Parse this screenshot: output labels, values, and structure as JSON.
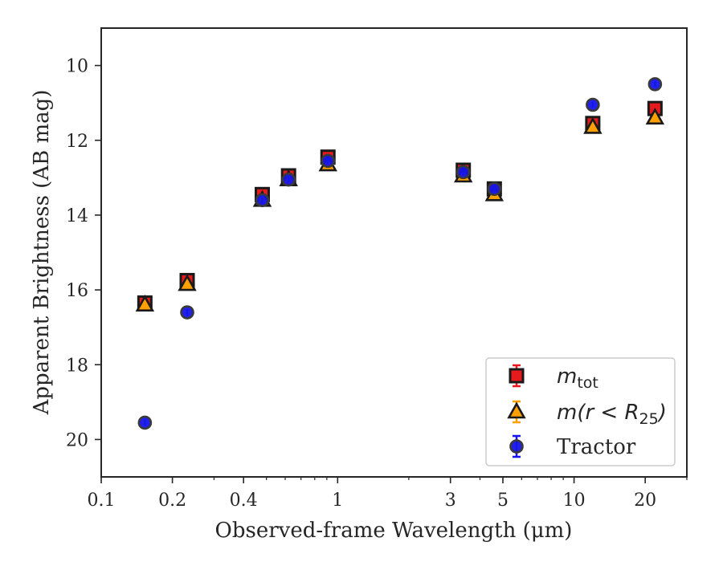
{
  "chart_data": {
    "type": "scatter",
    "xlabel": "Observed-frame Wavelength (μm)",
    "ylabel": "Apparent Brightness (AB mag)",
    "xscale": "log",
    "xlim": [
      0.1,
      30
    ],
    "ylim": [
      21,
      9
    ],
    "y_inverted": true,
    "x_ticks": [
      0.1,
      0.2,
      0.4,
      1,
      3,
      5,
      10,
      20
    ],
    "x_tick_labels": [
      "0.1",
      "0.2",
      "0.4",
      "1",
      "3",
      "5",
      "10",
      "20"
    ],
    "y_ticks": [
      10,
      12,
      14,
      16,
      18,
      20
    ],
    "y_tick_labels": [
      "10",
      "12",
      "14",
      "16",
      "18",
      "20"
    ],
    "grid": false,
    "legend_position": "lower-right",
    "series": [
      {
        "name": "m_tot",
        "legend_html": "m<tspan font-style='normal' font-size='19' dy='6'>tot</tspan>",
        "marker": "square",
        "color": "#e41a1c",
        "edge": "#1a1a1a",
        "x": [
          0.153,
          0.231,
          0.48,
          0.62,
          0.91,
          3.4,
          4.6,
          12.0,
          22.0
        ],
        "y": [
          16.35,
          15.75,
          13.45,
          12.95,
          12.45,
          12.8,
          13.3,
          11.55,
          11.15
        ]
      },
      {
        "name": "m(r < R25)",
        "legend_html": "m(r &lt; R<tspan font-style='normal' font-size='19' dy='6'>25</tspan><tspan dy='-6'>)</tspan>",
        "marker": "triangle",
        "color": "#ff9f00",
        "edge": "#1a1a1a",
        "x": [
          0.153,
          0.231,
          0.48,
          0.62,
          0.91,
          3.4,
          4.6,
          12.0,
          22.0
        ],
        "y": [
          16.4,
          15.85,
          13.6,
          13.05,
          12.65,
          12.95,
          13.45,
          11.65,
          11.4
        ]
      },
      {
        "name": "Tractor",
        "marker": "circle",
        "color": "#1515e8",
        "edge": "#3a3a3a",
        "x": [
          0.153,
          0.231,
          0.48,
          0.62,
          0.91,
          3.4,
          4.6,
          12.0,
          22.0
        ],
        "y": [
          19.55,
          16.6,
          13.6,
          13.05,
          12.55,
          12.85,
          13.3,
          11.05,
          10.5
        ]
      }
    ]
  }
}
